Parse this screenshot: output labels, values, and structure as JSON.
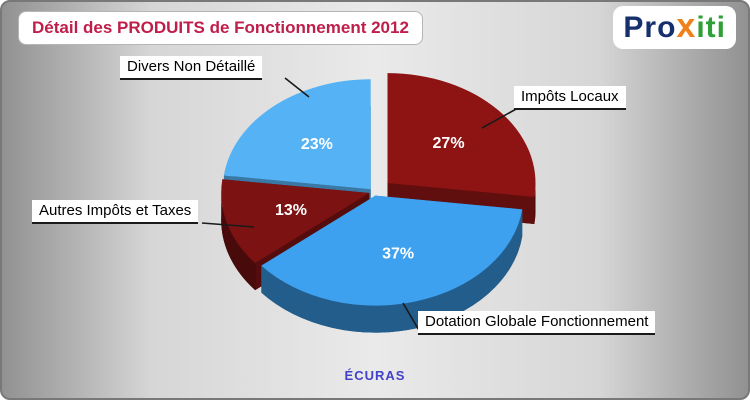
{
  "header": {
    "title": "Détail des PRODUITS de Fonctionnement 2012",
    "title_color": "#c01e4a"
  },
  "logo": {
    "parts": [
      {
        "text": "Pro",
        "color": "#16306e"
      },
      {
        "text": "x",
        "color": "#f08019"
      },
      {
        "text": "iti",
        "color": "#2f9f38"
      }
    ]
  },
  "footer": {
    "label": "ÉCURAS",
    "color": "#4242c8"
  },
  "chart_data": {
    "type": "pie",
    "title": "Détail des PRODUITS de Fonctionnement 2012",
    "unit": "%",
    "start_angle_deg": 0,
    "direction": "clockwise",
    "labels_show_percent": true,
    "legend_position": "callout-labels",
    "style": "3d-exploded",
    "slices": [
      {
        "label": "Impôts Locaux",
        "value": 27,
        "color": "#8e1414",
        "exploded": true
      },
      {
        "label": "Dotation Globale Fonctionnement",
        "value": 37,
        "color": "#3da1f0",
        "exploded": false
      },
      {
        "label": "Autres Impôts et Taxes",
        "value": 13,
        "color": "#7c1212",
        "exploded": false
      },
      {
        "label": "Divers Non Détaillé",
        "value": 23,
        "color": "#55b2f4",
        "exploded": false
      }
    ]
  }
}
